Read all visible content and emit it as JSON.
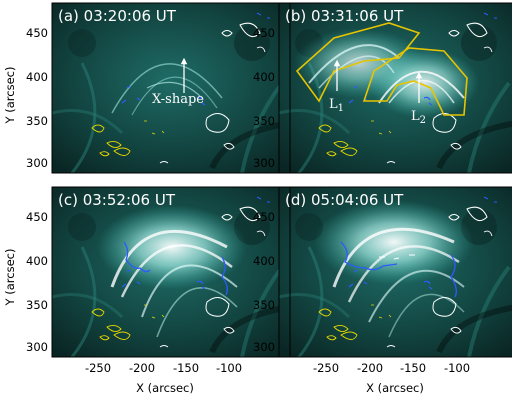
{
  "figure": {
    "panels": [
      {
        "id": "a",
        "label": "(a) 03:20:06 UT"
      },
      {
        "id": "b",
        "label": "(b) 03:31:06 UT"
      },
      {
        "id": "c",
        "label": "(c) 03:52:06 UT"
      },
      {
        "id": "d",
        "label": "(d) 05:04:06 UT"
      }
    ],
    "annotations": {
      "x_shape": "X-shape",
      "loop1": "L",
      "loop1_sub": "1",
      "loop2": "L",
      "loop2_sub": "2"
    },
    "x_axis": {
      "label": "X (arcsec)",
      "ticks": [
        "-250",
        "-200",
        "-150",
        "-100"
      ]
    },
    "y_axis": {
      "label": "Y (arcsec)",
      "ticks": [
        "450",
        "400",
        "350",
        "300"
      ]
    },
    "colors": {
      "background": "#103a3a",
      "loops": "#d8ffff",
      "contour_negative": "#2b5bff",
      "contour_positive": "#ffffff",
      "contour_yellow": "#e8d800",
      "box": "#e6c400"
    }
  }
}
